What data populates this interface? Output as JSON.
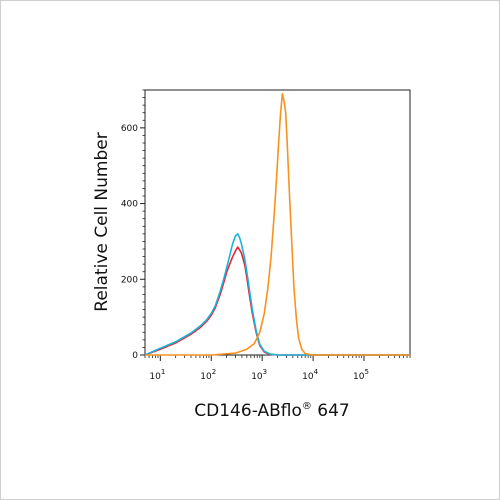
{
  "chart_data": {
    "type": "line",
    "title": "",
    "xlabel": "CD146-ABflo",
    "xlabel_superscript": "®",
    "xlabel_suffix": " 647",
    "ylabel": "Relative Cell Number",
    "x_scale": "log",
    "xlim": [
      5,
      800000
    ],
    "ylim": [
      0,
      700
    ],
    "x_ticks": [
      {
        "value": 10,
        "base": "10",
        "exp": "1"
      },
      {
        "value": 100,
        "base": "10",
        "exp": "2"
      },
      {
        "value": 1000,
        "base": "10",
        "exp": "3"
      },
      {
        "value": 10000,
        "base": "10",
        "exp": "4"
      },
      {
        "value": 100000,
        "base": "10",
        "exp": "5"
      }
    ],
    "y_ticks": [
      0,
      200,
      400,
      600
    ],
    "grid": false,
    "legend": "none",
    "series": [
      {
        "color": "#e8243a",
        "x": [
          5,
          10,
          20,
          40,
          60,
          80,
          100,
          120,
          150,
          180,
          200,
          230,
          260,
          300,
          330,
          360,
          390,
          420,
          460,
          500,
          560,
          640,
          760,
          900,
          1100,
          1400,
          2000,
          5000,
          800000
        ],
        "y": [
          0,
          15,
          32,
          55,
          72,
          88,
          105,
          125,
          160,
          195,
          218,
          240,
          258,
          275,
          285,
          278,
          270,
          255,
          235,
          205,
          160,
          110,
          60,
          25,
          8,
          2,
          0,
          0,
          0
        ]
      },
      {
        "color": "#1ab4d8",
        "x": [
          5,
          10,
          20,
          40,
          60,
          80,
          100,
          120,
          150,
          180,
          200,
          230,
          260,
          300,
          330,
          360,
          390,
          420,
          460,
          500,
          560,
          640,
          760,
          900,
          1100,
          1400,
          2000,
          5000,
          800000
        ],
        "y": [
          0,
          18,
          35,
          58,
          76,
          92,
          110,
          130,
          168,
          205,
          230,
          262,
          292,
          315,
          320,
          310,
          295,
          275,
          250,
          220,
          175,
          120,
          65,
          28,
          10,
          3,
          0,
          0,
          0
        ]
      },
      {
        "color": "#f7921e",
        "x": [
          5,
          100,
          300,
          500,
          700,
          900,
          1100,
          1300,
          1500,
          1700,
          1900,
          2100,
          2300,
          2500,
          2700,
          2900,
          3100,
          3400,
          3800,
          4200,
          4700,
          5200,
          6000,
          7000,
          8500,
          10000,
          12000,
          800000
        ],
        "y": [
          0,
          0,
          5,
          15,
          30,
          60,
          110,
          180,
          260,
          360,
          460,
          560,
          640,
          690,
          670,
          640,
          560,
          440,
          300,
          180,
          95,
          45,
          15,
          4,
          1,
          0,
          0,
          0
        ]
      }
    ]
  }
}
